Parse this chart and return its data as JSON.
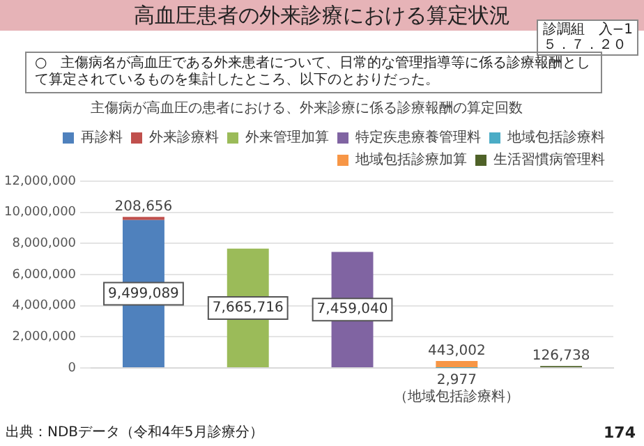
{
  "chart_data": {
    "type": "bar",
    "title": "高血圧患者の外来診療における算定状況",
    "subtitle": "○　主傷病名が高血圧である外来患者について、日常的な管理指導等に係る診療報酬として算定されているものを集計したところ、以下のとおりだった。",
    "annotations": [
      "主傷病が高血圧の患者における、外来診療に係る診療報酬の算定回数",
      "診調組　入−1\n５．７．２０",
      "（地域包括診療料）",
      "出典：NDBデータ（令和4年5月診療分）",
      "174"
    ],
    "categories": [
      null,
      null,
      null,
      null,
      null
    ],
    "stacked": true,
    "series": [
      {
        "name": "再診料",
        "color": "#4f81bd",
        "values": [
          9499089,
          null,
          null,
          null,
          null
        ],
        "value_labels": [
          "9,499,089",
          null,
          null,
          null,
          null
        ]
      },
      {
        "name": "外来診療料",
        "color": "#c0504d",
        "values": [
          208656,
          null,
          null,
          null,
          null
        ],
        "value_labels": [
          "208,656",
          null,
          null,
          null,
          null
        ]
      },
      {
        "name": "外来管理加算",
        "color": "#9bbb59",
        "values": [
          null,
          7665716,
          null,
          null,
          null
        ],
        "value_labels": [
          null,
          "7,665,716",
          null,
          null,
          null
        ]
      },
      {
        "name": "特定疾患療養管理料",
        "color": "#8064a2",
        "values": [
          null,
          null,
          7459040,
          null,
          null
        ],
        "value_labels": [
          null,
          null,
          "7,459,040",
          null,
          null
        ]
      },
      {
        "name": "地域包括診療料",
        "color": "#4bacc6",
        "values": [
          null,
          null,
          null,
          2977,
          null
        ],
        "value_labels": [
          null,
          null,
          null,
          "2,977",
          null
        ]
      },
      {
        "name": "地域包括診療加算",
        "color": "#f79646",
        "values": [
          null,
          null,
          null,
          443002,
          null
        ],
        "value_labels": [
          null,
          null,
          null,
          "443,002",
          null
        ]
      },
      {
        "name": "生活習慣病管理料",
        "color": "#4f6228",
        "values": [
          null,
          null,
          null,
          null,
          126738
        ],
        "value_labels": [
          null,
          null,
          null,
          null,
          "126,738"
        ]
      }
    ],
    "ylim": [
      0,
      12000000
    ],
    "yticks": [
      {
        "value": 0,
        "label": "0"
      },
      {
        "value": 2000000,
        "label": "2,000,000"
      },
      {
        "value": 4000000,
        "label": "4,000,000"
      },
      {
        "value": 6000000,
        "label": "6,000,000"
      },
      {
        "value": 8000000,
        "label": "8,000,000"
      },
      {
        "value": 10000000,
        "label": "10,000,000"
      },
      {
        "value": 12000000,
        "label": "12,000,000"
      }
    ],
    "grid": "y",
    "legend": "top right",
    "tick_labels": "y"
  }
}
